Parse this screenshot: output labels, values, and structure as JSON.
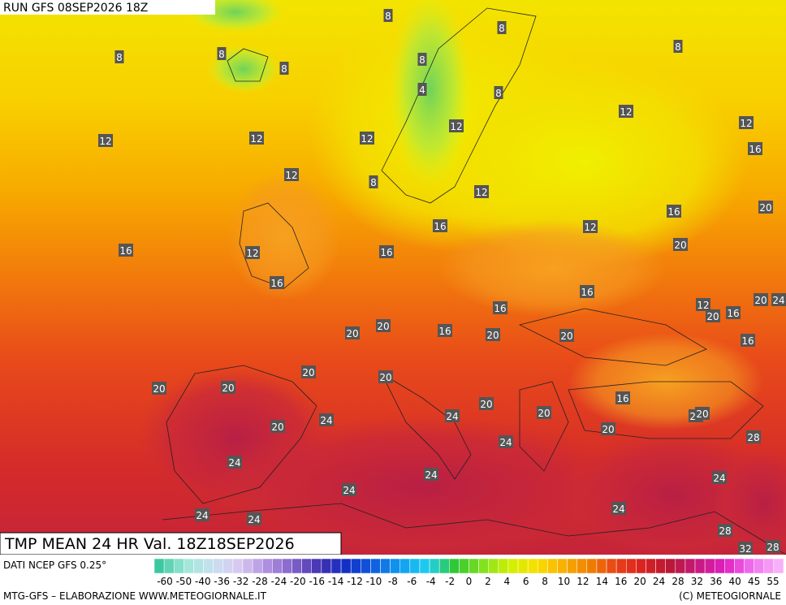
{
  "header": {
    "run": "RUN GFS 08SEP2026 18Z"
  },
  "caption": "TMP MEAN 24 HR Val. 18Z18SEP2026",
  "source": "DATI NCEP GFS 0.25°",
  "legend": {
    "labels": [
      -60,
      -50,
      -40,
      -36,
      -32,
      -28,
      -24,
      -20,
      -16,
      -14,
      -12,
      -10,
      -8,
      -6,
      -4,
      -2,
      0,
      2,
      4,
      6,
      8,
      10,
      12,
      14,
      16,
      20,
      24,
      28,
      32,
      36,
      40,
      45,
      55
    ]
  },
  "contour_labels": [
    8,
    8,
    8,
    8,
    8,
    8,
    8,
    8,
    4,
    12,
    12,
    12,
    12,
    12,
    12,
    16,
    12,
    8,
    12,
    16,
    16,
    20,
    12,
    16,
    12,
    16,
    20,
    16,
    16,
    12,
    20,
    16,
    20,
    24,
    16,
    20,
    20,
    16,
    20,
    20,
    16,
    20,
    20,
    20,
    20,
    16,
    20,
    20,
    24,
    20,
    24,
    20,
    24,
    20,
    24,
    28,
    24,
    24,
    24,
    24,
    24,
    24,
    24,
    28,
    32,
    28
  ],
  "footer": {
    "left": "MTG-GFS – ELABORAZIONE WWW.METEOGIORNALE.IT",
    "right": "(C) METEOGIORNALE"
  }
}
